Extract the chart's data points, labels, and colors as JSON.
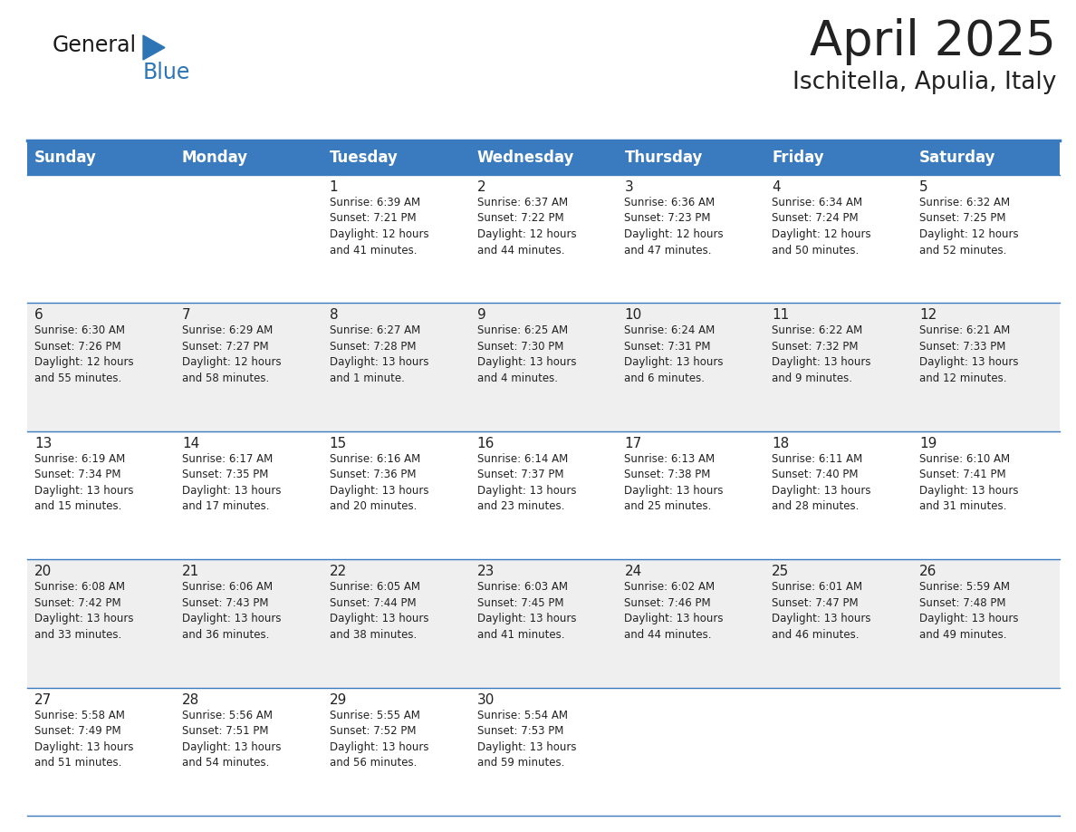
{
  "title": "April 2025",
  "subtitle": "Ischitella, Apulia, Italy",
  "header_color": "#3a7abf",
  "header_text_color": "#FFFFFF",
  "day_names": [
    "Sunday",
    "Monday",
    "Tuesday",
    "Wednesday",
    "Thursday",
    "Friday",
    "Saturday"
  ],
  "alt_row_color": "#EFEFEF",
  "white_color": "#FFFFFF",
  "border_color": "#3a7abf",
  "text_color": "#222222",
  "number_color": "#222222",
  "weeks": [
    [
      {
        "day": null,
        "text": ""
      },
      {
        "day": null,
        "text": ""
      },
      {
        "day": 1,
        "text": "Sunrise: 6:39 AM\nSunset: 7:21 PM\nDaylight: 12 hours\nand 41 minutes."
      },
      {
        "day": 2,
        "text": "Sunrise: 6:37 AM\nSunset: 7:22 PM\nDaylight: 12 hours\nand 44 minutes."
      },
      {
        "day": 3,
        "text": "Sunrise: 6:36 AM\nSunset: 7:23 PM\nDaylight: 12 hours\nand 47 minutes."
      },
      {
        "day": 4,
        "text": "Sunrise: 6:34 AM\nSunset: 7:24 PM\nDaylight: 12 hours\nand 50 minutes."
      },
      {
        "day": 5,
        "text": "Sunrise: 6:32 AM\nSunset: 7:25 PM\nDaylight: 12 hours\nand 52 minutes."
      }
    ],
    [
      {
        "day": 6,
        "text": "Sunrise: 6:30 AM\nSunset: 7:26 PM\nDaylight: 12 hours\nand 55 minutes."
      },
      {
        "day": 7,
        "text": "Sunrise: 6:29 AM\nSunset: 7:27 PM\nDaylight: 12 hours\nand 58 minutes."
      },
      {
        "day": 8,
        "text": "Sunrise: 6:27 AM\nSunset: 7:28 PM\nDaylight: 13 hours\nand 1 minute."
      },
      {
        "day": 9,
        "text": "Sunrise: 6:25 AM\nSunset: 7:30 PM\nDaylight: 13 hours\nand 4 minutes."
      },
      {
        "day": 10,
        "text": "Sunrise: 6:24 AM\nSunset: 7:31 PM\nDaylight: 13 hours\nand 6 minutes."
      },
      {
        "day": 11,
        "text": "Sunrise: 6:22 AM\nSunset: 7:32 PM\nDaylight: 13 hours\nand 9 minutes."
      },
      {
        "day": 12,
        "text": "Sunrise: 6:21 AM\nSunset: 7:33 PM\nDaylight: 13 hours\nand 12 minutes."
      }
    ],
    [
      {
        "day": 13,
        "text": "Sunrise: 6:19 AM\nSunset: 7:34 PM\nDaylight: 13 hours\nand 15 minutes."
      },
      {
        "day": 14,
        "text": "Sunrise: 6:17 AM\nSunset: 7:35 PM\nDaylight: 13 hours\nand 17 minutes."
      },
      {
        "day": 15,
        "text": "Sunrise: 6:16 AM\nSunset: 7:36 PM\nDaylight: 13 hours\nand 20 minutes."
      },
      {
        "day": 16,
        "text": "Sunrise: 6:14 AM\nSunset: 7:37 PM\nDaylight: 13 hours\nand 23 minutes."
      },
      {
        "day": 17,
        "text": "Sunrise: 6:13 AM\nSunset: 7:38 PM\nDaylight: 13 hours\nand 25 minutes."
      },
      {
        "day": 18,
        "text": "Sunrise: 6:11 AM\nSunset: 7:40 PM\nDaylight: 13 hours\nand 28 minutes."
      },
      {
        "day": 19,
        "text": "Sunrise: 6:10 AM\nSunset: 7:41 PM\nDaylight: 13 hours\nand 31 minutes."
      }
    ],
    [
      {
        "day": 20,
        "text": "Sunrise: 6:08 AM\nSunset: 7:42 PM\nDaylight: 13 hours\nand 33 minutes."
      },
      {
        "day": 21,
        "text": "Sunrise: 6:06 AM\nSunset: 7:43 PM\nDaylight: 13 hours\nand 36 minutes."
      },
      {
        "day": 22,
        "text": "Sunrise: 6:05 AM\nSunset: 7:44 PM\nDaylight: 13 hours\nand 38 minutes."
      },
      {
        "day": 23,
        "text": "Sunrise: 6:03 AM\nSunset: 7:45 PM\nDaylight: 13 hours\nand 41 minutes."
      },
      {
        "day": 24,
        "text": "Sunrise: 6:02 AM\nSunset: 7:46 PM\nDaylight: 13 hours\nand 44 minutes."
      },
      {
        "day": 25,
        "text": "Sunrise: 6:01 AM\nSunset: 7:47 PM\nDaylight: 13 hours\nand 46 minutes."
      },
      {
        "day": 26,
        "text": "Sunrise: 5:59 AM\nSunset: 7:48 PM\nDaylight: 13 hours\nand 49 minutes."
      }
    ],
    [
      {
        "day": 27,
        "text": "Sunrise: 5:58 AM\nSunset: 7:49 PM\nDaylight: 13 hours\nand 51 minutes."
      },
      {
        "day": 28,
        "text": "Sunrise: 5:56 AM\nSunset: 7:51 PM\nDaylight: 13 hours\nand 54 minutes."
      },
      {
        "day": 29,
        "text": "Sunrise: 5:55 AM\nSunset: 7:52 PM\nDaylight: 13 hours\nand 56 minutes."
      },
      {
        "day": 30,
        "text": "Sunrise: 5:54 AM\nSunset: 7:53 PM\nDaylight: 13 hours\nand 59 minutes."
      },
      {
        "day": null,
        "text": ""
      },
      {
        "day": null,
        "text": ""
      },
      {
        "day": null,
        "text": ""
      }
    ]
  ],
  "title_fontsize": 38,
  "subtitle_fontsize": 19,
  "header_fontsize": 12,
  "day_num_fontsize": 11,
  "cell_text_fontsize": 8.5,
  "logo_general_fontsize": 17,
  "logo_blue_fontsize": 17
}
